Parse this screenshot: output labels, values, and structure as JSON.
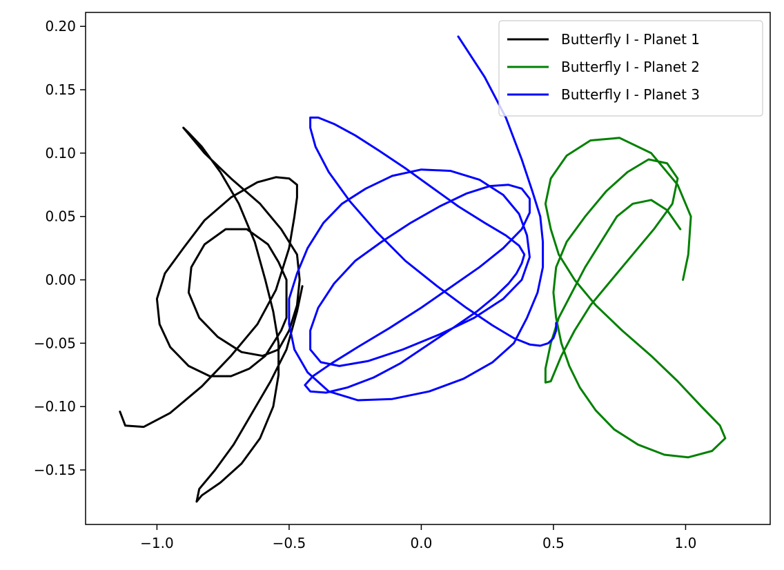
{
  "chart_data": {
    "type": "line",
    "title": "",
    "xlabel": "",
    "ylabel": "",
    "xlim": [
      -1.27,
      1.32
    ],
    "ylim": [
      -0.193,
      0.211
    ],
    "xticks": [
      -1.0,
      -0.5,
      0.0,
      0.5,
      1.0
    ],
    "xtick_labels": [
      "−1.0",
      "−0.5",
      "0.0",
      "0.5",
      "1.0"
    ],
    "yticks": [
      -0.15,
      -0.1,
      -0.05,
      0.0,
      0.05,
      0.1,
      0.15,
      0.2
    ],
    "ytick_labels": [
      "−0.15",
      "−0.10",
      "−0.05",
      "0.00",
      "0.05",
      "0.10",
      "0.15",
      "0.20"
    ],
    "grid": false,
    "legend_position": "top-right",
    "series": [
      {
        "name": "Butterfly I - Planet 1",
        "color": "#000000",
        "x": [
          -1.14,
          -1.12,
          -1.05,
          -0.95,
          -0.83,
          -0.72,
          -0.62,
          -0.55,
          -0.5,
          -0.48,
          -0.47,
          -0.47,
          -0.5,
          -0.55,
          -0.62,
          -0.72,
          -0.82,
          -0.9,
          -0.97,
          -1.0,
          -0.99,
          -0.95,
          -0.88,
          -0.8,
          -0.72,
          -0.65,
          -0.59,
          -0.56,
          -0.53,
          -0.51,
          -0.51,
          -0.51,
          -0.54,
          -0.58,
          -0.66,
          -0.74,
          -0.82,
          -0.87,
          -0.88,
          -0.84,
          -0.77,
          -0.68,
          -0.6,
          -0.54,
          -0.5,
          -0.47,
          -0.46,
          -0.47,
          -0.53,
          -0.61,
          -0.72,
          -0.82,
          -0.88,
          -0.9,
          -0.88,
          -0.83,
          -0.76,
          -0.69,
          -0.63,
          -0.59,
          -0.56,
          -0.54,
          -0.54,
          -0.56,
          -0.61,
          -0.68,
          -0.76,
          -0.83,
          -0.85,
          -0.84,
          -0.78,
          -0.71,
          -0.64,
          -0.57,
          -0.51,
          -0.47,
          -0.45
        ],
        "y": [
          -0.104,
          -0.115,
          -0.116,
          -0.105,
          -0.084,
          -0.06,
          -0.035,
          -0.008,
          0.025,
          0.05,
          0.065,
          0.075,
          0.08,
          0.081,
          0.077,
          0.065,
          0.047,
          0.025,
          0.005,
          -0.015,
          -0.035,
          -0.053,
          -0.068,
          -0.076,
          -0.076,
          -0.07,
          -0.06,
          -0.05,
          -0.04,
          -0.03,
          -0.015,
          0.0,
          0.014,
          0.028,
          0.04,
          0.04,
          0.028,
          0.01,
          -0.01,
          -0.03,
          -0.045,
          -0.057,
          -0.06,
          -0.055,
          -0.04,
          -0.02,
          0.0,
          0.02,
          0.04,
          0.06,
          0.08,
          0.1,
          0.115,
          0.12,
          0.116,
          0.105,
          0.085,
          0.06,
          0.03,
          0.0,
          -0.025,
          -0.05,
          -0.075,
          -0.1,
          -0.125,
          -0.145,
          -0.16,
          -0.17,
          -0.175,
          -0.165,
          -0.15,
          -0.13,
          -0.105,
          -0.08,
          -0.055,
          -0.025,
          -0.005
        ]
      },
      {
        "name": "Butterfly I - Planet 2",
        "color": "#008000",
        "x": [
          0.99,
          1.01,
          1.02,
          0.97,
          0.87,
          0.75,
          0.64,
          0.55,
          0.49,
          0.47,
          0.49,
          0.52,
          0.58,
          0.66,
          0.76,
          0.87,
          0.97,
          1.06,
          1.13,
          1.15,
          1.1,
          1.01,
          0.92,
          0.82,
          0.73,
          0.66,
          0.6,
          0.56,
          0.53,
          0.51,
          0.5,
          0.51,
          0.55,
          0.62,
          0.7,
          0.78,
          0.86,
          0.93,
          0.97,
          0.95,
          0.88,
          0.8,
          0.72,
          0.64,
          0.58,
          0.53,
          0.49,
          0.47,
          0.47,
          0.49,
          0.52,
          0.57,
          0.62,
          0.68,
          0.74,
          0.8,
          0.87,
          0.93,
          0.98
        ],
        "y": [
          0.0,
          0.02,
          0.05,
          0.075,
          0.1,
          0.112,
          0.11,
          0.098,
          0.08,
          0.06,
          0.04,
          0.02,
          0.0,
          -0.02,
          -0.04,
          -0.06,
          -0.08,
          -0.1,
          -0.115,
          -0.125,
          -0.135,
          -0.14,
          -0.138,
          -0.13,
          -0.118,
          -0.103,
          -0.085,
          -0.068,
          -0.05,
          -0.03,
          -0.01,
          0.01,
          0.03,
          0.05,
          0.07,
          0.085,
          0.095,
          0.092,
          0.08,
          0.06,
          0.04,
          0.02,
          0.0,
          -0.02,
          -0.04,
          -0.06,
          -0.08,
          -0.081,
          -0.07,
          -0.05,
          -0.03,
          -0.01,
          0.01,
          0.03,
          0.05,
          0.06,
          0.063,
          0.055,
          0.04
        ]
      },
      {
        "name": "Butterfly I - Planet 3",
        "color": "#0000ff",
        "x": [
          0.14,
          0.24,
          0.32,
          0.38,
          0.42,
          0.45,
          0.46,
          0.46,
          0.44,
          0.4,
          0.35,
          0.27,
          0.16,
          0.03,
          -0.11,
          -0.24,
          -0.35,
          -0.43,
          -0.48,
          -0.5,
          -0.5,
          -0.47,
          -0.43,
          -0.37,
          -0.3,
          -0.21,
          -0.11,
          0.0,
          0.11,
          0.22,
          0.31,
          0.37,
          0.4,
          0.41,
          0.38,
          0.31,
          0.2,
          0.07,
          -0.07,
          -0.2,
          -0.31,
          -0.38,
          -0.42,
          -0.42,
          -0.39,
          -0.33,
          -0.25,
          -0.15,
          -0.04,
          0.07,
          0.17,
          0.26,
          0.33,
          0.38,
          0.41,
          0.41,
          0.38,
          0.31,
          0.22,
          0.11,
          0.0,
          -0.12,
          -0.24,
          -0.34,
          -0.41,
          -0.44,
          -0.42,
          -0.36,
          -0.28,
          -0.18,
          -0.08,
          0.02,
          0.12,
          0.21,
          0.28,
          0.33,
          0.36,
          0.38,
          0.39,
          0.37,
          0.32,
          0.24,
          0.14,
          0.04,
          -0.06,
          -0.16,
          -0.25,
          -0.33,
          -0.39,
          -0.42,
          -0.42,
          -0.4,
          -0.35,
          -0.27,
          -0.17,
          -0.06,
          0.06,
          0.17,
          0.27,
          0.35,
          0.41,
          0.45,
          0.48,
          0.5,
          0.51,
          0.51
        ],
        "y": [
          0.192,
          0.16,
          0.128,
          0.095,
          0.07,
          0.05,
          0.03,
          0.01,
          -0.01,
          -0.03,
          -0.05,
          -0.065,
          -0.078,
          -0.088,
          -0.094,
          -0.095,
          -0.088,
          -0.073,
          -0.055,
          -0.035,
          -0.015,
          0.005,
          0.025,
          0.045,
          0.06,
          0.072,
          0.082,
          0.087,
          0.086,
          0.079,
          0.067,
          0.052,
          0.035,
          0.018,
          0.0,
          -0.015,
          -0.03,
          -0.043,
          -0.055,
          -0.064,
          -0.068,
          -0.065,
          -0.055,
          -0.04,
          -0.022,
          -0.003,
          0.015,
          0.03,
          0.045,
          0.058,
          0.068,
          0.074,
          0.075,
          0.072,
          0.064,
          0.053,
          0.04,
          0.025,
          0.01,
          -0.006,
          -0.022,
          -0.038,
          -0.053,
          -0.066,
          -0.076,
          -0.083,
          -0.088,
          -0.089,
          -0.085,
          -0.077,
          -0.066,
          -0.052,
          -0.038,
          -0.025,
          -0.013,
          -0.003,
          0.005,
          0.013,
          0.02,
          0.027,
          0.035,
          0.045,
          0.058,
          0.073,
          0.088,
          0.102,
          0.114,
          0.123,
          0.128,
          0.128,
          0.12,
          0.105,
          0.085,
          0.062,
          0.038,
          0.015,
          -0.005,
          -0.022,
          -0.036,
          -0.046,
          -0.051,
          -0.052,
          -0.05,
          -0.046,
          -0.04,
          -0.034
        ]
      }
    ]
  }
}
